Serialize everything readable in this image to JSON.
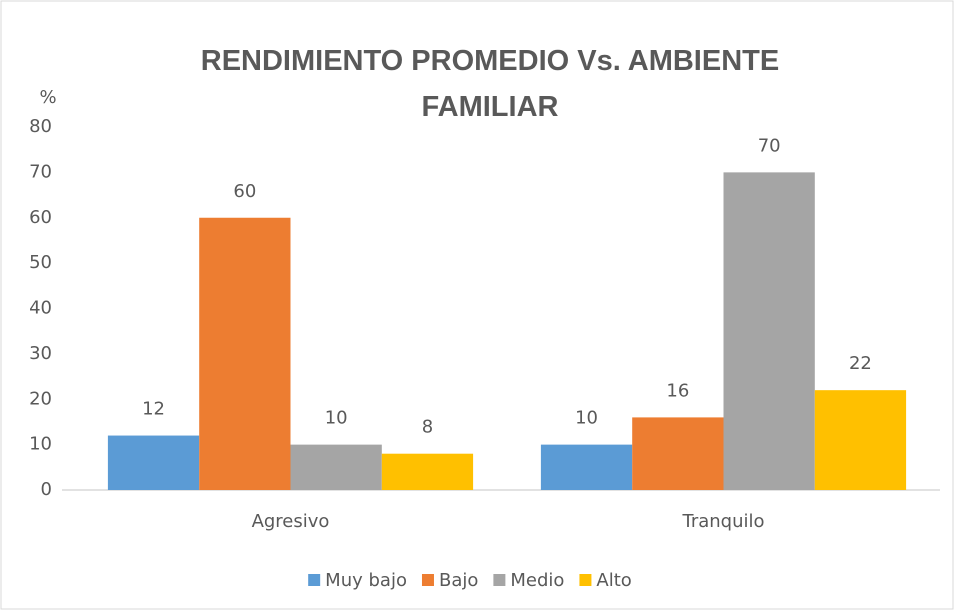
{
  "chart_data": {
    "type": "bar",
    "title": "RENDIMIENTO PROMEDIO Vs. AMBIENTE FAMILIAR",
    "y_axis_label": "%",
    "categories": [
      "Agresivo",
      "Tranquilo"
    ],
    "series": [
      {
        "name": "Muy bajo",
        "color": "#5b9bd5",
        "values": [
          12,
          10
        ]
      },
      {
        "name": "Bajo",
        "color": "#ed7d31",
        "values": [
          60,
          16
        ]
      },
      {
        "name": "Medio",
        "color": "#a5a5a5",
        "values": [
          10,
          70
        ]
      },
      {
        "name": "Alto",
        "color": "#ffc000",
        "values": [
          8,
          22
        ]
      }
    ],
    "ylim": [
      0,
      80
    ],
    "yticks": [
      0,
      10,
      20,
      30,
      40,
      50,
      60,
      70,
      80
    ],
    "grid": false,
    "legend": "bottom"
  }
}
